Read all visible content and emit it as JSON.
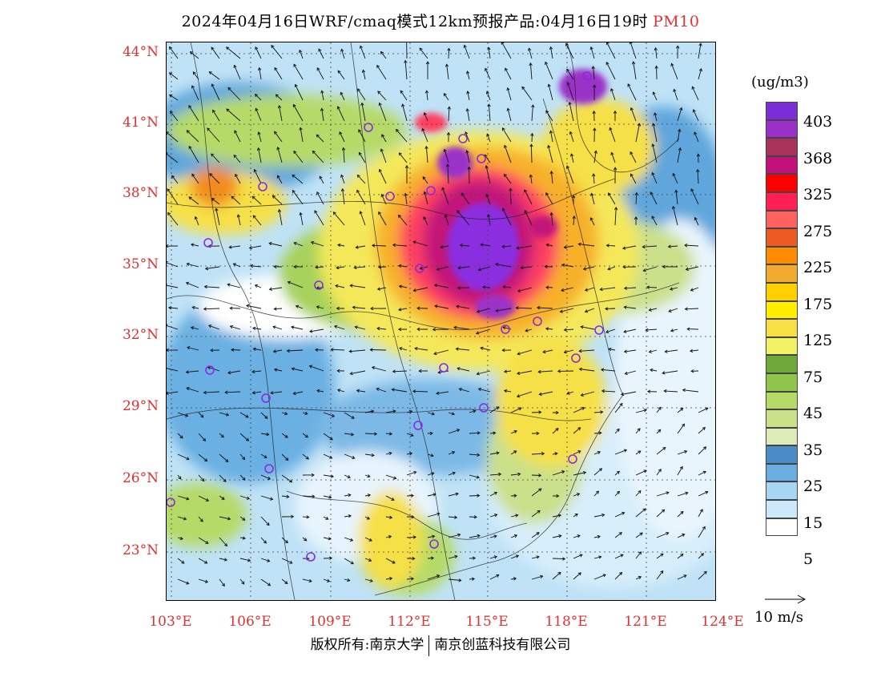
{
  "title": {
    "main": "2024年04月16日WRF/cmaq模式12km预报产品:04月16日19时",
    "pollutant": "PM10"
  },
  "latitude_labels": [
    "44°N",
    "41°N",
    "38°N",
    "35°N",
    "32°N",
    "29°N",
    "26°N",
    "23°N"
  ],
  "longitude_labels": [
    "103°E",
    "106°E",
    "109°E",
    "112°E",
    "115°E",
    "118°E",
    "121°E",
    "124°E"
  ],
  "legend": {
    "unit": "(ug/m3)",
    "labels": [
      "403",
      "368",
      "325",
      "275",
      "225",
      "175",
      "125",
      "75",
      "45",
      "35",
      "25",
      "15",
      "5"
    ],
    "colors": [
      "#7a2fd6",
      "#9b30c8",
      "#a8325a",
      "#c2127a",
      "#ff0000",
      "#ff1f55",
      "#ff6060",
      "#ee5b22",
      "#ff8c00",
      "#f2ab2c",
      "#ffd000",
      "#ffee00",
      "#f6e046",
      "#f2f266",
      "#6ea83a",
      "#8dc64a",
      "#b6da68",
      "#cbe08a",
      "#deebb8",
      "#4a8cc8",
      "#6aaee0",
      "#a6d6f2",
      "#cce8fa",
      "#ffffff"
    ]
  },
  "vector_label": "10 m/s",
  "credit": {
    "left": "版权所有:南京大学",
    "right": "南京创蓝科技有限公司"
  }
}
